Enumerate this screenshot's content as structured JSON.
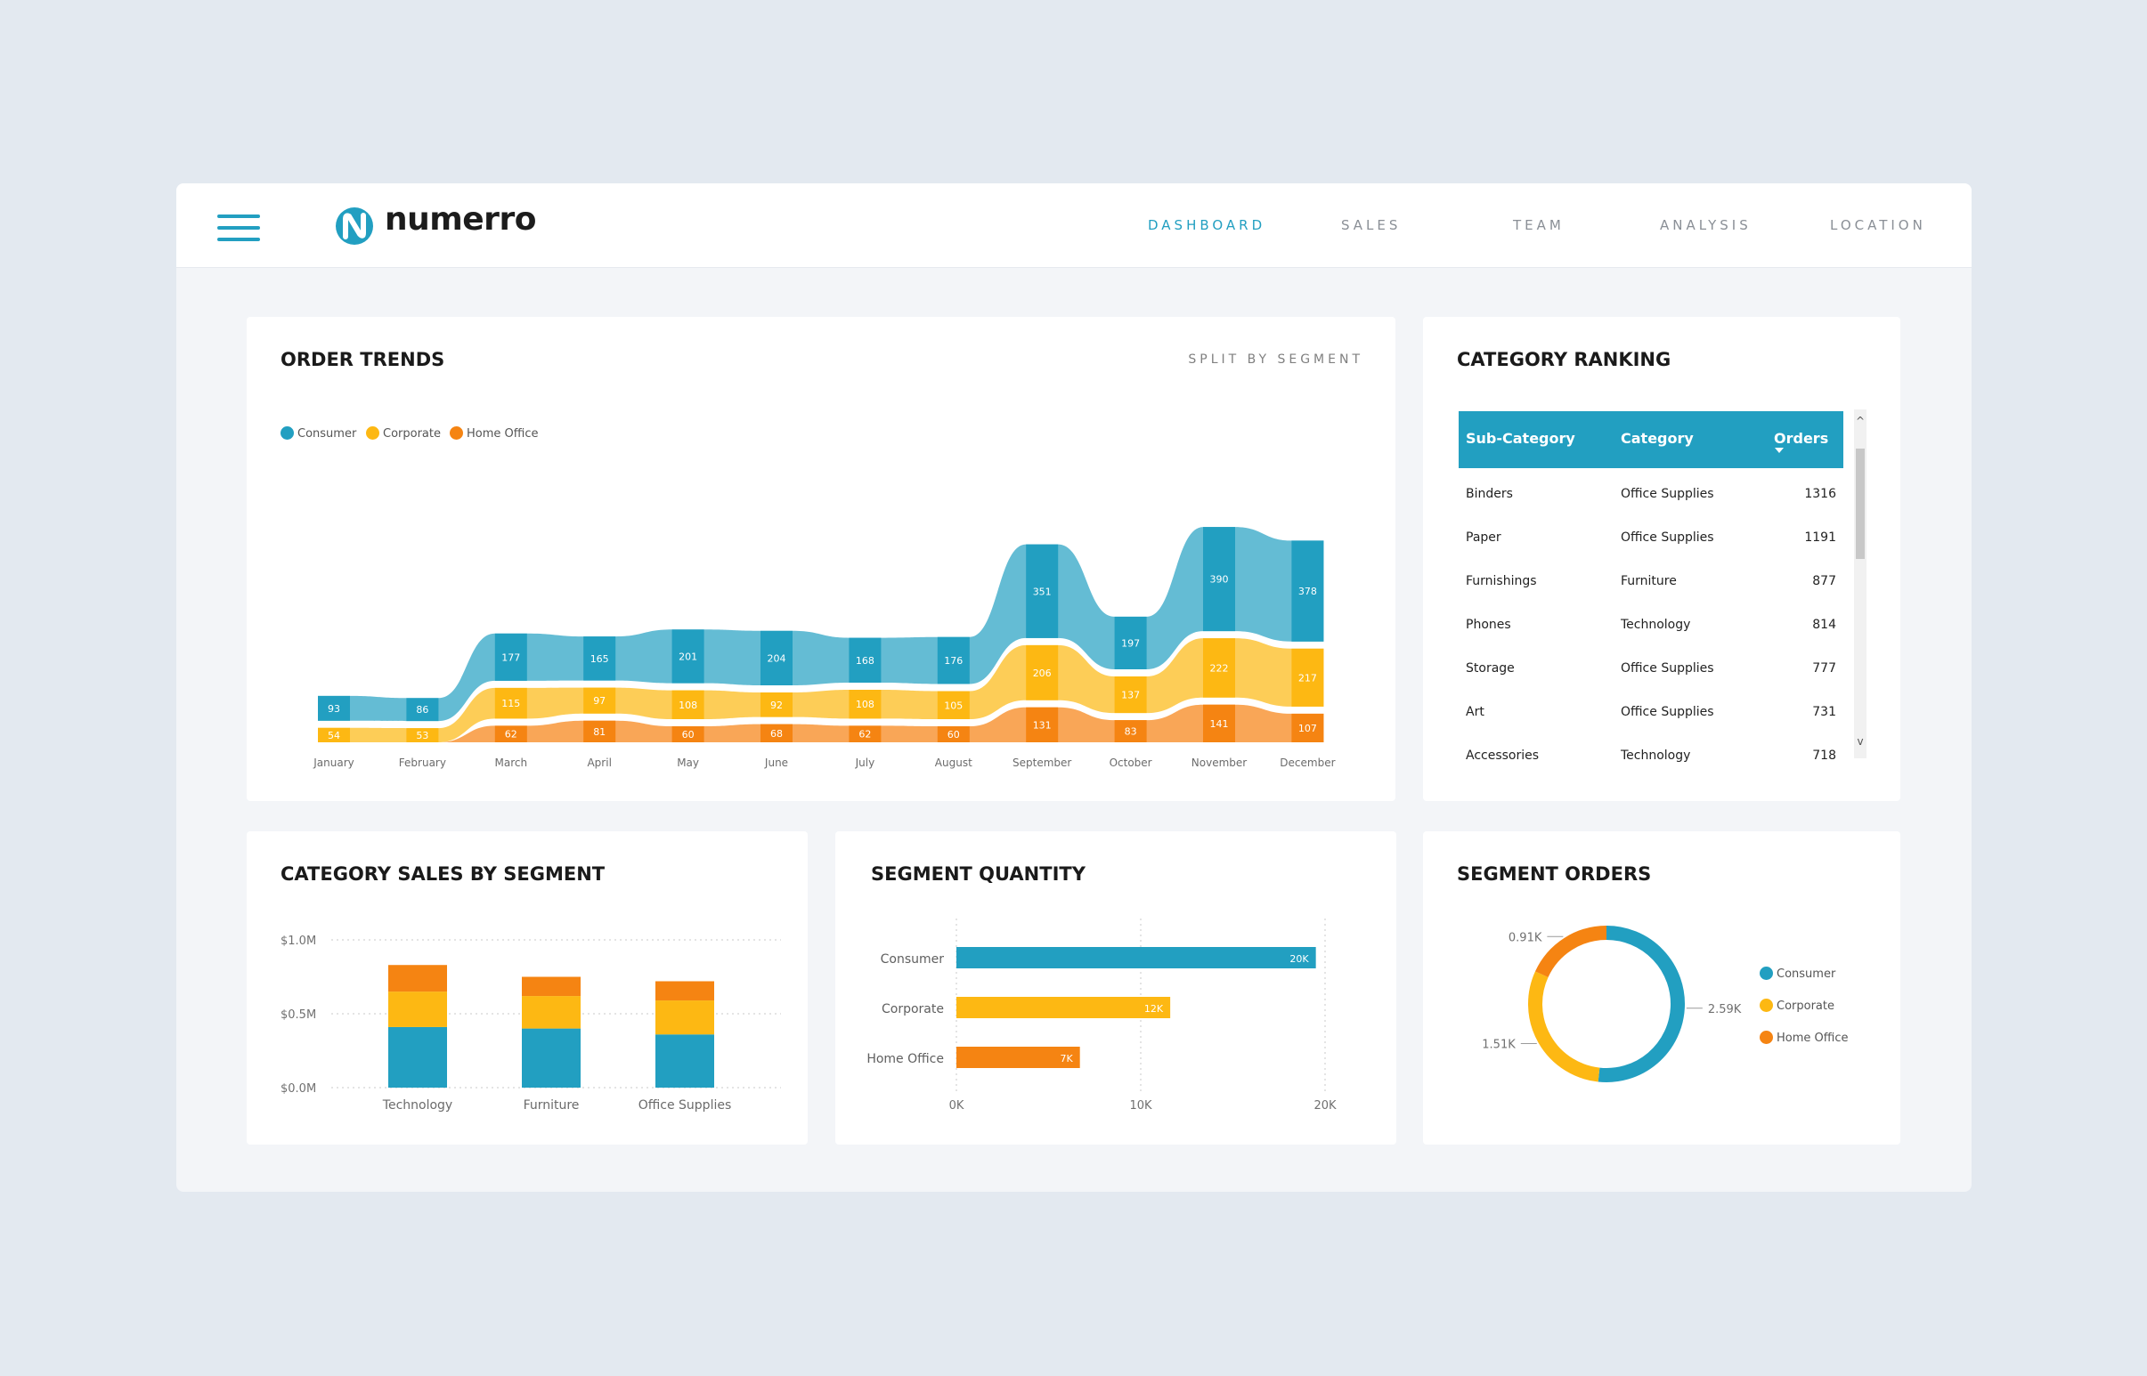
{
  "brand": {
    "name": "numerro"
  },
  "nav": {
    "items": [
      {
        "label": "DASHBOARD",
        "active": true
      },
      {
        "label": "SALES",
        "active": false
      },
      {
        "label": "TEAM",
        "active": false
      },
      {
        "label": "ANALYSIS",
        "active": false
      },
      {
        "label": "LOCATION",
        "active": false
      }
    ]
  },
  "colors": {
    "consumer": "#229fc1",
    "corporate": "#fdb813",
    "home_office": "#f58412",
    "accent": "#229fc1"
  },
  "order_trends": {
    "title": "ORDER TRENDS",
    "subtitle": "SPLIT BY SEGMENT",
    "legend": [
      "Consumer",
      "Corporate",
      "Home Office"
    ]
  },
  "category_ranking": {
    "title": "CATEGORY RANKING",
    "columns": [
      "Sub-Category",
      "Category",
      "Orders"
    ],
    "rows": [
      [
        "Binders",
        "Office Supplies",
        "1316"
      ],
      [
        "Paper",
        "Office Supplies",
        "1191"
      ],
      [
        "Furnishings",
        "Furniture",
        "877"
      ],
      [
        "Phones",
        "Technology",
        "814"
      ],
      [
        "Storage",
        "Office Supplies",
        "777"
      ],
      [
        "Art",
        "Office Supplies",
        "731"
      ],
      [
        "Accessories",
        "Technology",
        "718"
      ]
    ],
    "scroll_up": "^",
    "scroll_down": "v"
  },
  "category_sales": {
    "title": "CATEGORY SALES BY SEGMENT"
  },
  "segment_quantity": {
    "title": "SEGMENT QUANTITY"
  },
  "segment_orders": {
    "title": "SEGMENT ORDERS",
    "legend": [
      "Consumer",
      "Corporate",
      "Home Office"
    ]
  },
  "chart_data": [
    {
      "type": "area",
      "title": "ORDER TRENDS",
      "stacked": true,
      "categories": [
        "January",
        "February",
        "March",
        "April",
        "May",
        "June",
        "July",
        "August",
        "September",
        "October",
        "November",
        "December"
      ],
      "series": [
        {
          "name": "Home Office",
          "values": [
            null,
            null,
            62,
            81,
            60,
            68,
            62,
            60,
            131,
            83,
            141,
            107
          ]
        },
        {
          "name": "Corporate",
          "values": [
            54,
            53,
            115,
            97,
            108,
            92,
            108,
            105,
            206,
            137,
            222,
            217
          ]
        },
        {
          "name": "Consumer",
          "values": [
            93,
            86,
            177,
            165,
            201,
            204,
            168,
            176,
            351,
            197,
            390,
            378
          ]
        }
      ],
      "legend": "top-left"
    },
    {
      "type": "bar",
      "title": "CATEGORY SALES BY SEGMENT",
      "stacked": true,
      "categories": [
        "Technology",
        "Furniture",
        "Office Supplies"
      ],
      "series": [
        {
          "name": "Consumer",
          "values": [
            0.41,
            0.4,
            0.36
          ]
        },
        {
          "name": "Corporate",
          "values": [
            0.24,
            0.22,
            0.23
          ]
        },
        {
          "name": "Home Office",
          "values": [
            0.18,
            0.13,
            0.13
          ]
        }
      ],
      "y_ticks": [
        "$0.0M",
        "$0.5M",
        "$1.0M"
      ],
      "ylim": [
        0,
        1.0
      ],
      "grid": true
    },
    {
      "type": "bar",
      "orientation": "horizontal",
      "title": "SEGMENT QUANTITY",
      "categories": [
        "Consumer",
        "Corporate",
        "Home Office"
      ],
      "values": [
        19.5,
        11.6,
        6.7
      ],
      "value_labels": [
        "20K",
        "12K",
        "7K"
      ],
      "x_ticks": [
        "0K",
        "10K",
        "20K"
      ],
      "xlim": [
        0,
        20
      ],
      "grid": true
    },
    {
      "type": "pie",
      "donut": true,
      "title": "SEGMENT ORDERS",
      "categories": [
        "Consumer",
        "Corporate",
        "Home Office"
      ],
      "values": [
        2.59,
        1.51,
        0.91
      ],
      "value_labels": [
        "2.59K",
        "1.51K",
        "0.91K"
      ],
      "legend": "right"
    }
  ]
}
